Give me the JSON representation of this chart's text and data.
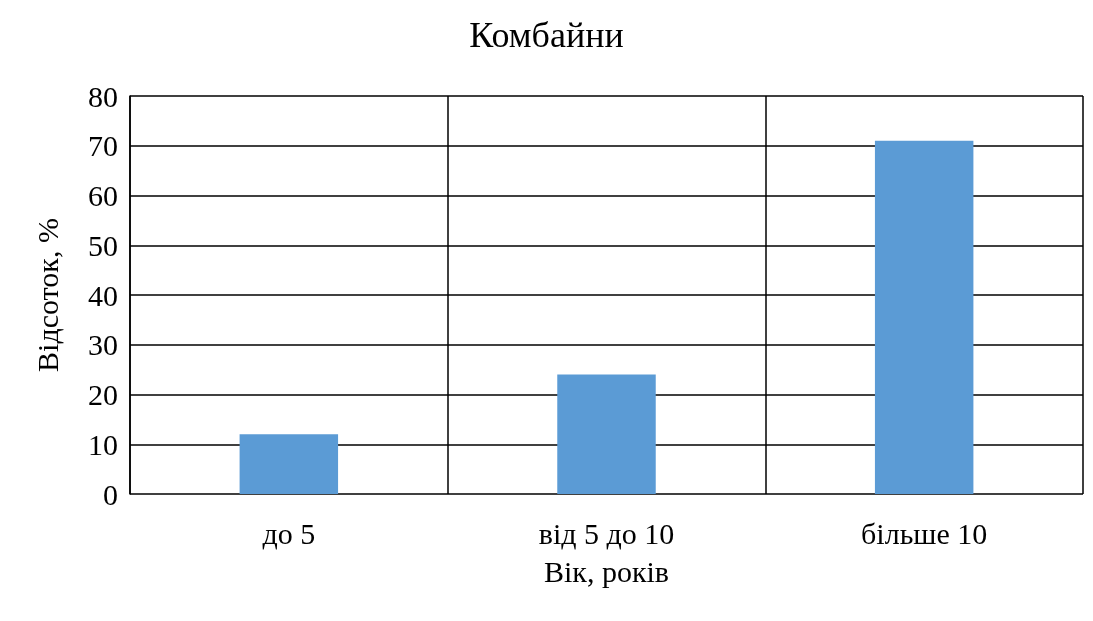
{
  "chart_data": {
    "type": "bar",
    "title": "Комбайни",
    "xlabel": "Вік, років",
    "ylabel": "Відсоток, %",
    "categories": [
      "до 5",
      "від 5 до 10",
      "більше 10"
    ],
    "values": [
      12,
      24,
      71
    ],
    "color": "#5b9bd5",
    "ylim": [
      0,
      80
    ],
    "yticks": [
      0,
      10,
      20,
      30,
      40,
      50,
      60,
      70,
      80
    ],
    "grid": true
  }
}
